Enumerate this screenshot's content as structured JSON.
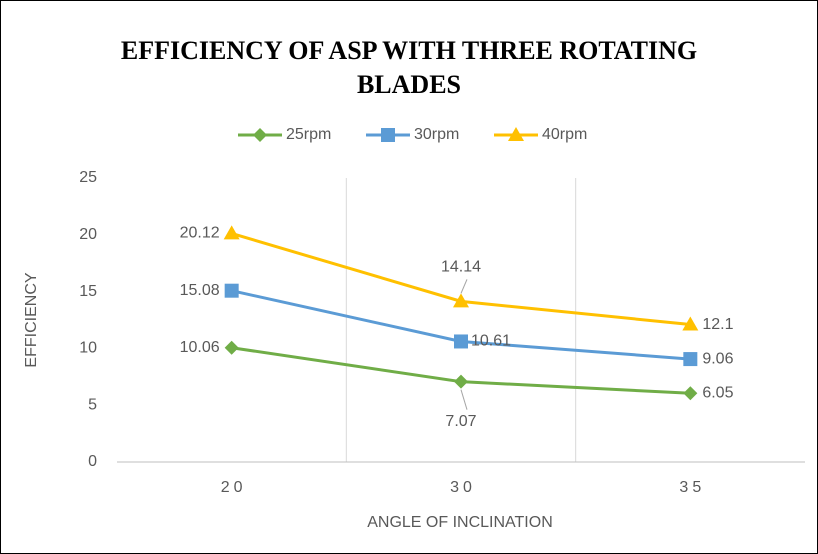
{
  "chart_data": {
    "type": "line",
    "title": "EFFICIENCY OF ASP WITH THREE ROTATING BLADES",
    "x_label": "ANGLE OF INCLINATION",
    "y_label": "EFFICIENCY",
    "categories": [
      "20",
      "30",
      "35"
    ],
    "series": [
      {
        "name": "25rpm",
        "color": "#70ad47",
        "marker": "diamond",
        "values": [
          10.06,
          7.07,
          6.05
        ]
      },
      {
        "name": "30rpm",
        "color": "#5b9bd5",
        "marker": "square",
        "values": [
          15.08,
          10.61,
          9.06
        ]
      },
      {
        "name": "40rpm",
        "color": "#ffc000",
        "marker": "triangle",
        "values": [
          20.12,
          14.14,
          12.1
        ]
      }
    ],
    "ylim": [
      0,
      25
    ],
    "yticks": [
      0,
      5,
      10,
      15,
      20,
      25
    ],
    "legend": "top"
  }
}
